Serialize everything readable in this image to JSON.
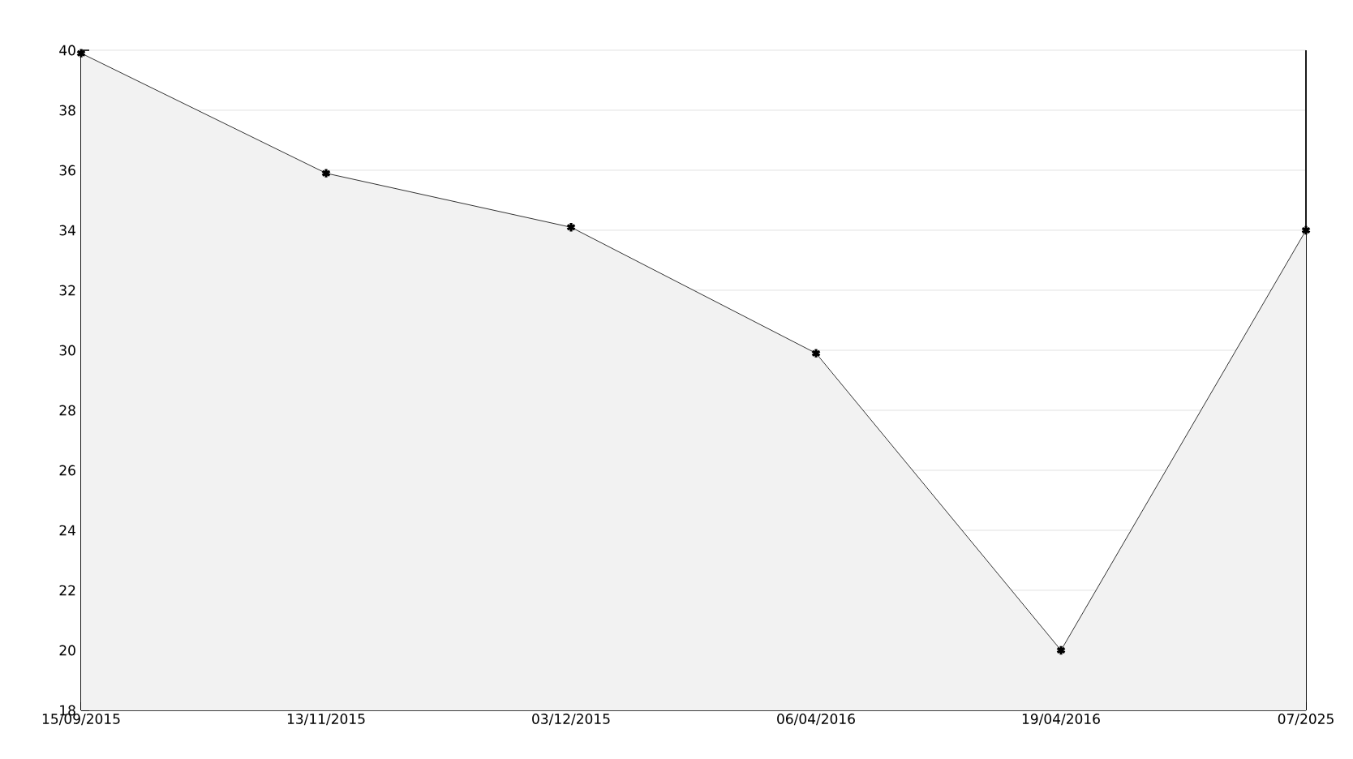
{
  "chart_data": {
    "type": "area",
    "categories": [
      "15/09/2015",
      "13/11/2015",
      "03/12/2015",
      "06/04/2016",
      "19/04/2016",
      "07/2025"
    ],
    "values": [
      39.9,
      35.9,
      34.1,
      29.9,
      20,
      34
    ],
    "color": "#000000",
    "ylim": [
      18,
      40
    ],
    "yticks": [
      18,
      20,
      22,
      24,
      26,
      28,
      30,
      32,
      34,
      36,
      38,
      40
    ],
    "grid": "y",
    "marker": "cross",
    "line_style": "solid"
  }
}
